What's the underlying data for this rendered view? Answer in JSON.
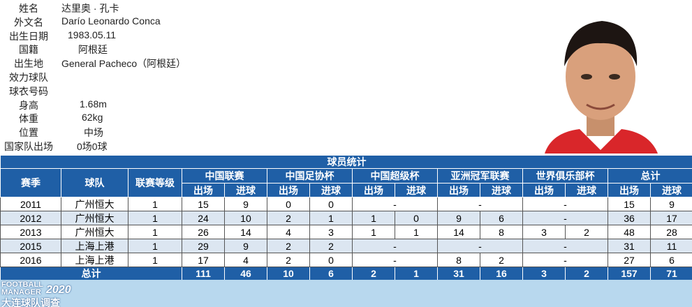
{
  "profile": {
    "fields": [
      {
        "label": "姓名",
        "value": "达里奥 · 孔卡"
      },
      {
        "label": "外文名",
        "value": "Darío Leonardo Conca"
      },
      {
        "label": "出生日期",
        "value": "1983.05.11"
      },
      {
        "label": "国籍",
        "value": "阿根廷"
      },
      {
        "label": "出生地",
        "value": "General Pacheco（阿根廷）"
      },
      {
        "label": "效力球队"
      },
      {
        "label": "球衣号码"
      },
      {
        "label": "身高",
        "value": "1.68m"
      },
      {
        "label": "体重",
        "value": "62kg"
      },
      {
        "label": "位置",
        "value": "中场"
      },
      {
        "label": "国家队出场",
        "value": "0场0球"
      }
    ]
  },
  "table": {
    "title": "球员统计",
    "headers": {
      "season": "赛季",
      "team": "球队",
      "level": "联赛等级",
      "groups": [
        "中国联赛",
        "中国足协杯",
        "中国超级杯",
        "亚洲冠军联赛",
        "世界俱乐部杯",
        "总计"
      ],
      "sub": [
        "出场",
        "进球"
      ]
    },
    "rows": [
      {
        "season": "2011",
        "team": "广州恒大",
        "level": 1,
        "stats": [
          [
            15,
            9
          ],
          [
            0,
            0
          ],
          "-",
          "-",
          "-",
          [
            15,
            9
          ]
        ]
      },
      {
        "season": "2012",
        "team": "广州恒大",
        "level": 1,
        "stats": [
          [
            24,
            10
          ],
          [
            2,
            1
          ],
          [
            1,
            0
          ],
          [
            9,
            6
          ],
          "-",
          [
            36,
            17
          ]
        ]
      },
      {
        "season": "2013",
        "team": "广州恒大",
        "level": 1,
        "stats": [
          [
            26,
            14
          ],
          [
            4,
            3
          ],
          [
            1,
            1
          ],
          [
            14,
            8
          ],
          [
            3,
            2
          ],
          [
            48,
            28
          ]
        ]
      },
      {
        "season": "2015",
        "team": "上海上港",
        "level": 1,
        "stats": [
          [
            29,
            9
          ],
          [
            2,
            2
          ],
          "-",
          "-",
          "-",
          [
            31,
            11
          ]
        ]
      },
      {
        "season": "2016",
        "team": "上海上港",
        "level": 1,
        "stats": [
          [
            17,
            4
          ],
          [
            2,
            0
          ],
          "-",
          [
            8,
            2
          ],
          "-",
          [
            27,
            6
          ]
        ]
      }
    ],
    "total": {
      "label": "总计",
      "stats": [
        [
          111,
          46
        ],
        [
          10,
          6
        ],
        [
          2,
          1
        ],
        [
          31,
          16
        ],
        [
          3,
          2
        ],
        [
          157,
          71
        ]
      ]
    }
  },
  "footer": {
    "logo_line1": "FOOTBALL",
    "logo_line2": "MANAGER",
    "logo_year": "2020",
    "logo_cn": "大连球队调查"
  }
}
